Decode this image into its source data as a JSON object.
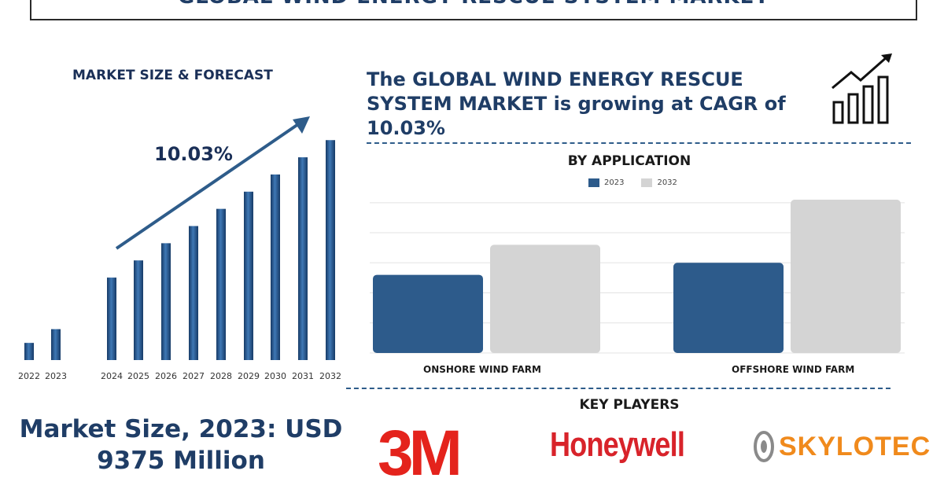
{
  "page": {
    "title": "GLOBAL WIND ENERGY RESCUE SYSTEM MARKET",
    "headline": "The GLOBAL WIND ENERGY RESCUE SYSTEM MARKET is growing at CAGR of 10.03%",
    "market_size_text": "Market Size, 2023: USD 9375 Million",
    "key_players_title": "KEY PLAYERS",
    "key_players": [
      "3M",
      "Honeywell",
      "SKYLOTEC"
    ]
  },
  "colors": {
    "navy": "#1f3d66",
    "bar_2023": "#2d5b8b",
    "bar_2032": "#d4d4d4",
    "logo_red": "#e4231c",
    "skylotec_orange": "#f08a1c"
  },
  "chart_data": [
    {
      "type": "bar",
      "title": "MARKET SIZE & FORECAST",
      "annotation": "10.03%",
      "categories": [
        "2022",
        "2023",
        "2024",
        "2025",
        "2026",
        "2027",
        "2028",
        "2029",
        "2030",
        "2031",
        "2032"
      ],
      "values": [
        1.0,
        1.8,
        4.8,
        5.8,
        6.8,
        7.8,
        8.8,
        9.8,
        10.8,
        11.8,
        12.8
      ],
      "ylim": [
        0,
        14
      ],
      "grid": false
    },
    {
      "type": "bar",
      "title": "BY APPLICATION",
      "categories": [
        "ONSHORE WIND FARM",
        "OFFSHORE WIND FARM"
      ],
      "series": [
        {
          "name": "2023",
          "values": [
            2.6,
            3.0
          ]
        },
        {
          "name": "2032",
          "values": [
            3.6,
            5.1
          ]
        }
      ],
      "ylim": [
        0,
        5.1
      ],
      "grid": true,
      "legend": "top-center"
    }
  ]
}
